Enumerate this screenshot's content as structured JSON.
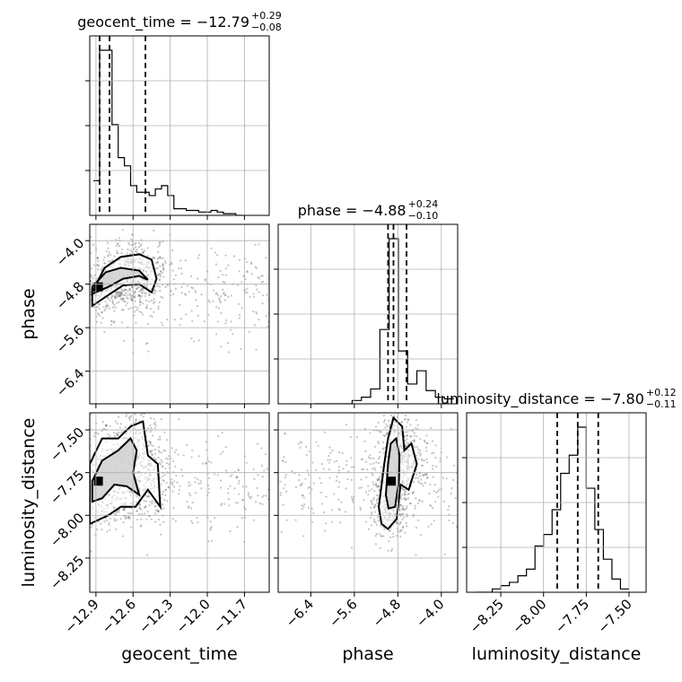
{
  "chart_data": {
    "type": "corner",
    "parameters": [
      "geocent_time",
      "phase",
      "luminosity_distance"
    ],
    "titles": [
      {
        "name": "geocent_time",
        "median": "−12.79",
        "plus": "+0.29",
        "minus": "−0.08"
      },
      {
        "name": "phase",
        "median": "−4.88",
        "plus": "+0.24",
        "minus": "−0.10"
      },
      {
        "name": "luminosity_distance",
        "median": "−7.80",
        "plus": "+0.12",
        "minus": "−0.11"
      }
    ],
    "axes": {
      "geocent_time": {
        "range": [
          -12.95,
          -11.5
        ],
        "ticks": [
          -12.9,
          -12.6,
          -12.3,
          -12.0,
          -11.7
        ],
        "tick_labels": [
          "−12.9",
          "−12.6",
          "−12.3",
          "−12.0",
          "−11.7"
        ]
      },
      "phase": {
        "range": [
          -7.0,
          -3.7
        ],
        "ticks": [
          -6.4,
          -5.6,
          -4.8,
          -4.0
        ],
        "tick_labels": [
          "−6.4",
          "−5.6",
          "−4.8",
          "−4.0"
        ]
      },
      "luminosity_distance": {
        "range": [
          -8.45,
          -7.4
        ],
        "ticks": [
          -8.25,
          -8.0,
          -7.75,
          -7.5
        ],
        "tick_labels": [
          "−8.25",
          "−8.00",
          "−7.75",
          "−7.50"
        ]
      }
    },
    "histograms": [
      {
        "param": "geocent_time",
        "edges": [
          -12.92,
          -12.87,
          -12.82,
          -12.77,
          -12.72,
          -12.67,
          -12.62,
          -12.57,
          -12.52,
          -12.47,
          -12.42,
          -12.37,
          -12.32,
          -12.27,
          -12.22,
          -12.17,
          -12.12,
          -12.07,
          -12.02,
          -11.97,
          -11.92,
          -11.87,
          -11.82,
          -11.77,
          -11.72
        ],
        "counts": [
          0.21,
          1.0,
          1.0,
          0.55,
          0.35,
          0.3,
          0.18,
          0.14,
          0.14,
          0.12,
          0.16,
          0.18,
          0.12,
          0.04,
          0.04,
          0.03,
          0.03,
          0.02,
          0.02,
          0.03,
          0.02,
          0.01,
          0.01,
          0.0
        ],
        "quantiles": [
          -12.87,
          -12.79,
          -12.5
        ]
      },
      {
        "param": "phase",
        "edges": [
          -6.32,
          -6.15,
          -5.98,
          -5.81,
          -5.64,
          -5.47,
          -5.3,
          -5.13,
          -4.96,
          -4.79,
          -4.62,
          -4.45,
          -4.28,
          -4.11,
          -3.94,
          -3.77
        ],
        "counts": [
          0.0,
          0.0,
          0.0,
          0.0,
          0.02,
          0.04,
          0.09,
          0.45,
          1.0,
          0.32,
          0.12,
          0.2,
          0.08,
          0.04,
          0.03
        ],
        "quantiles": [
          -4.98,
          -4.88,
          -4.64
        ]
      },
      {
        "param": "luminosity_distance",
        "edges": [
          -8.4,
          -8.35,
          -8.3,
          -8.25,
          -8.2,
          -8.15,
          -8.1,
          -8.05,
          -8.0,
          -7.95,
          -7.9,
          -7.85,
          -7.8,
          -7.75,
          -7.7,
          -7.65,
          -7.6,
          -7.55,
          -7.5
        ],
        "counts": [
          0.0,
          0.0,
          0.02,
          0.04,
          0.06,
          0.1,
          0.14,
          0.28,
          0.35,
          0.5,
          0.72,
          0.83,
          1.0,
          0.63,
          0.38,
          0.2,
          0.08,
          0.02
        ],
        "quantiles": [
          -7.92,
          -7.8,
          -7.68
        ]
      }
    ],
    "contours": [
      {
        "x": "geocent_time",
        "y": "phase",
        "levels": [
          [
            [
              -12.93,
              -4.95
            ],
            [
              -12.83,
              -4.5
            ],
            [
              -12.7,
              -4.3
            ],
            [
              -12.55,
              -4.25
            ],
            [
              -12.45,
              -4.35
            ],
            [
              -12.41,
              -4.7
            ],
            [
              -12.45,
              -4.95
            ],
            [
              -12.55,
              -4.8
            ],
            [
              -12.68,
              -4.82
            ],
            [
              -12.8,
              -5.0
            ],
            [
              -12.93,
              -5.2
            ]
          ],
          [
            [
              -12.93,
              -4.85
            ],
            [
              -12.82,
              -4.58
            ],
            [
              -12.7,
              -4.5
            ],
            [
              -12.55,
              -4.55
            ],
            [
              -12.48,
              -4.72
            ],
            [
              -12.55,
              -4.65
            ],
            [
              -12.68,
              -4.7
            ],
            [
              -12.8,
              -4.85
            ],
            [
              -12.93,
              -4.98
            ]
          ]
        ],
        "peak": [
          -12.88,
          -4.85
        ]
      },
      {
        "x": "geocent_time",
        "y": "luminosity_distance",
        "levels": [
          [
            [
              -12.95,
              -7.7
            ],
            [
              -12.85,
              -7.55
            ],
            [
              -12.72,
              -7.55
            ],
            [
              -12.62,
              -7.48
            ],
            [
              -12.52,
              -7.45
            ],
            [
              -12.48,
              -7.65
            ],
            [
              -12.4,
              -7.7
            ],
            [
              -12.38,
              -7.95
            ],
            [
              -12.48,
              -7.85
            ],
            [
              -12.58,
              -7.95
            ],
            [
              -12.7,
              -7.95
            ],
            [
              -12.8,
              -8.0
            ],
            [
              -12.95,
              -8.05
            ]
          ],
          [
            [
              -12.93,
              -7.8
            ],
            [
              -12.85,
              -7.68
            ],
            [
              -12.72,
              -7.62
            ],
            [
              -12.62,
              -7.55
            ],
            [
              -12.57,
              -7.62
            ],
            [
              -12.6,
              -7.75
            ],
            [
              -12.55,
              -7.88
            ],
            [
              -12.65,
              -7.83
            ],
            [
              -12.75,
              -7.82
            ],
            [
              -12.85,
              -7.9
            ],
            [
              -12.93,
              -7.92
            ]
          ]
        ],
        "peak": [
          -12.88,
          -7.8
        ]
      },
      {
        "x": "phase",
        "y": "luminosity_distance",
        "levels": [
          [
            [
              -5.15,
              -7.95
            ],
            [
              -5.05,
              -7.7
            ],
            [
              -4.98,
              -7.55
            ],
            [
              -4.88,
              -7.43
            ],
            [
              -4.72,
              -7.48
            ],
            [
              -4.68,
              -7.62
            ],
            [
              -4.55,
              -7.58
            ],
            [
              -4.45,
              -7.7
            ],
            [
              -4.6,
              -7.85
            ],
            [
              -4.75,
              -7.82
            ],
            [
              -4.82,
              -8.02
            ],
            [
              -4.98,
              -8.08
            ],
            [
              -5.1,
              -8.05
            ]
          ],
          [
            [
              -5.02,
              -7.88
            ],
            [
              -4.98,
              -7.7
            ],
            [
              -4.93,
              -7.58
            ],
            [
              -4.83,
              -7.55
            ],
            [
              -4.77,
              -7.65
            ],
            [
              -4.78,
              -7.8
            ],
            [
              -4.85,
              -7.95
            ],
            [
              -4.97,
              -7.96
            ]
          ]
        ],
        "peak": [
          -4.92,
          -7.8
        ]
      }
    ],
    "axis_labels": {
      "geocent_time": "geocent_time",
      "phase": "phase",
      "luminosity_distance": "luminosity_distance"
    },
    "grid": true
  }
}
